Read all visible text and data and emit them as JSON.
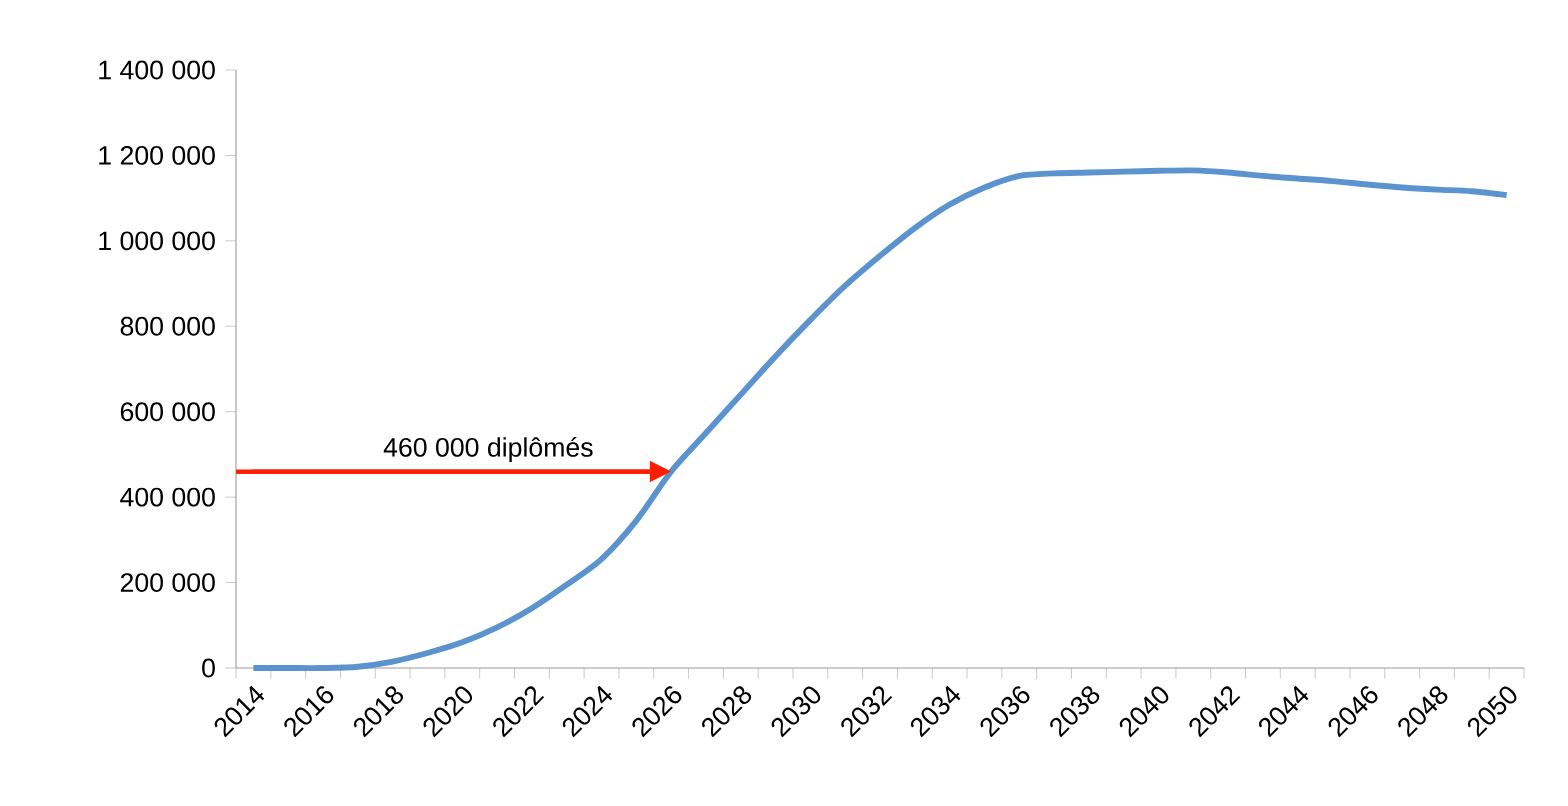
{
  "chart_data": {
    "type": "line",
    "categories": [
      "2014",
      null,
      "2016",
      null,
      "2018",
      null,
      "2020",
      null,
      "2022",
      null,
      "2024",
      null,
      "2026",
      null,
      "2028",
      null,
      "2030",
      null,
      "2032",
      null,
      "2034",
      null,
      "2036",
      null,
      "2038",
      null,
      "2040",
      null,
      "2042",
      null,
      "2044",
      null,
      "2046",
      null,
      "2048",
      null,
      "2050"
    ],
    "series": [
      {
        "color": "#5b93cf",
        "values": [
          0,
          0,
          0,
          3000,
          15000,
          35000,
          60000,
          95000,
          140000,
          195000,
          255000,
          345000,
          460000,
          550000,
          640000,
          730000,
          815000,
          895000,
          965000,
          1030000,
          1085000,
          1125000,
          1152000,
          1158000,
          1160000,
          1162000,
          1164000,
          1165000,
          1160000,
          1152000,
          1146000,
          1140000,
          1132000,
          1125000,
          1120000,
          1116000,
          1107000
        ]
      }
    ],
    "ylim": [
      0,
      1400000
    ],
    "yticks": [
      {
        "value": 0,
        "label": "0"
      },
      {
        "value": 200000,
        "label": "200 000"
      },
      {
        "value": 400000,
        "label": "400 000"
      },
      {
        "value": 600000,
        "label": "600 000"
      },
      {
        "value": 800000,
        "label": "800 000"
      },
      {
        "value": 1000000,
        "label": "1 000 000"
      },
      {
        "value": 1200000,
        "label": "1 200 000"
      },
      {
        "value": 1400000,
        "label": "1 400 000"
      }
    ],
    "ref_lines": [
      {
        "axis": "y",
        "value": 460000,
        "label": "460 000 diplômés",
        "color": "#ff1e00"
      }
    ],
    "marker": "none",
    "line_style": "solid"
  }
}
